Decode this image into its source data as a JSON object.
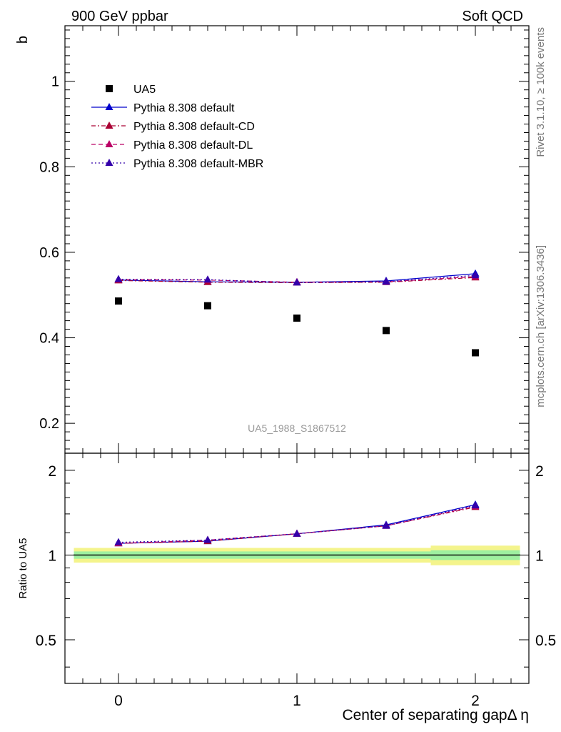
{
  "header": {
    "left": "900 GeV ppbar",
    "right": "Soft QCD"
  },
  "side_text": {
    "rivet": "Rivet 3.1.10, ≥ 100k events",
    "mcplots": "mcplots.cern.ch [arXiv:1306.3436]"
  },
  "analysis_id": "UA5_1988_S1867512",
  "chart_data": [
    {
      "type": "scatter",
      "panel": "main",
      "ylabel": "b",
      "xlabel": "",
      "xlim": [
        -0.3,
        2.3
      ],
      "ylim": [
        0.13,
        1.13
      ],
      "yticks": [
        {
          "value": 0.2,
          "label": "0.2"
        },
        {
          "value": 0.4,
          "label": "0.4"
        },
        {
          "value": 0.6,
          "label": "0.6"
        },
        {
          "value": 0.8,
          "label": "0.8"
        },
        {
          "value": 1.0,
          "label": "1"
        }
      ],
      "x": [
        0,
        0.5,
        1,
        1.5,
        2
      ],
      "series": [
        {
          "name": "UA5",
          "marker": "square",
          "color": "#000000",
          "values": [
            0.486,
            0.475,
            0.446,
            0.417,
            0.365
          ]
        },
        {
          "name": "Pythia 8.308 default",
          "marker": "triangle",
          "line": "solid",
          "color": "#0000cc",
          "values": [
            0.535,
            0.531,
            0.53,
            0.533,
            0.55
          ]
        },
        {
          "name": "Pythia 8.308 default-CD",
          "marker": "triangle",
          "line": "dashdot",
          "color": "#aa0033",
          "values": [
            0.534,
            0.53,
            0.529,
            0.53,
            0.541
          ]
        },
        {
          "name": "Pythia 8.308 default-DL",
          "marker": "triangle",
          "line": "dashed",
          "color": "#bb0066",
          "values": [
            0.536,
            0.535,
            0.53,
            0.531,
            0.543
          ]
        },
        {
          "name": "Pythia 8.308 default-MBR",
          "marker": "triangle",
          "line": "dotted",
          "color": "#3300aa",
          "values": [
            0.537,
            0.536,
            0.529,
            0.531,
            0.546
          ]
        }
      ]
    },
    {
      "type": "line",
      "panel": "ratio",
      "ylabel": "Ratio to UA5",
      "xlabel": "Center of separating gapΔ η",
      "xlim": [
        -0.3,
        2.3
      ],
      "ylim": [
        0.35,
        2.3
      ],
      "xticks": [
        {
          "value": 0,
          "label": "0"
        },
        {
          "value": 1,
          "label": "1"
        },
        {
          "value": 2,
          "label": "2"
        }
      ],
      "yticks": [
        {
          "value": 0.5,
          "label": "0.5"
        },
        {
          "value": 1,
          "label": "1"
        },
        {
          "value": 2,
          "label": "2"
        }
      ],
      "x": [
        0,
        0.5,
        1,
        1.5,
        2
      ],
      "bands": [
        {
          "x0": -0.25,
          "x1": 0.25,
          "inner": [
            0.97,
            1.03
          ],
          "outer": [
            0.94,
            1.06
          ]
        },
        {
          "x0": 0.25,
          "x1": 0.75,
          "inner": [
            0.97,
            1.03
          ],
          "outer": [
            0.94,
            1.06
          ]
        },
        {
          "x0": 0.75,
          "x1": 1.25,
          "inner": [
            0.97,
            1.03
          ],
          "outer": [
            0.94,
            1.06
          ]
        },
        {
          "x0": 1.25,
          "x1": 1.75,
          "inner": [
            0.97,
            1.03
          ],
          "outer": [
            0.94,
            1.06
          ]
        },
        {
          "x0": 1.75,
          "x1": 2.25,
          "inner": [
            0.96,
            1.04
          ],
          "outer": [
            0.92,
            1.08
          ]
        }
      ],
      "series": [
        {
          "name": "Pythia 8.308 default",
          "color": "#0000cc",
          "line": "solid",
          "values": [
            1.1,
            1.12,
            1.19,
            1.28,
            1.51
          ]
        },
        {
          "name": "Pythia 8.308 default-CD",
          "color": "#aa0033",
          "line": "dashdot",
          "values": [
            1.1,
            1.12,
            1.19,
            1.27,
            1.48
          ]
        },
        {
          "name": "Pythia 8.308 default-DL",
          "color": "#bb0066",
          "line": "dashed",
          "values": [
            1.1,
            1.13,
            1.19,
            1.27,
            1.49
          ]
        },
        {
          "name": "Pythia 8.308 default-MBR",
          "color": "#3300aa",
          "line": "dotted",
          "values": [
            1.11,
            1.13,
            1.19,
            1.27,
            1.5
          ]
        }
      ]
    }
  ]
}
